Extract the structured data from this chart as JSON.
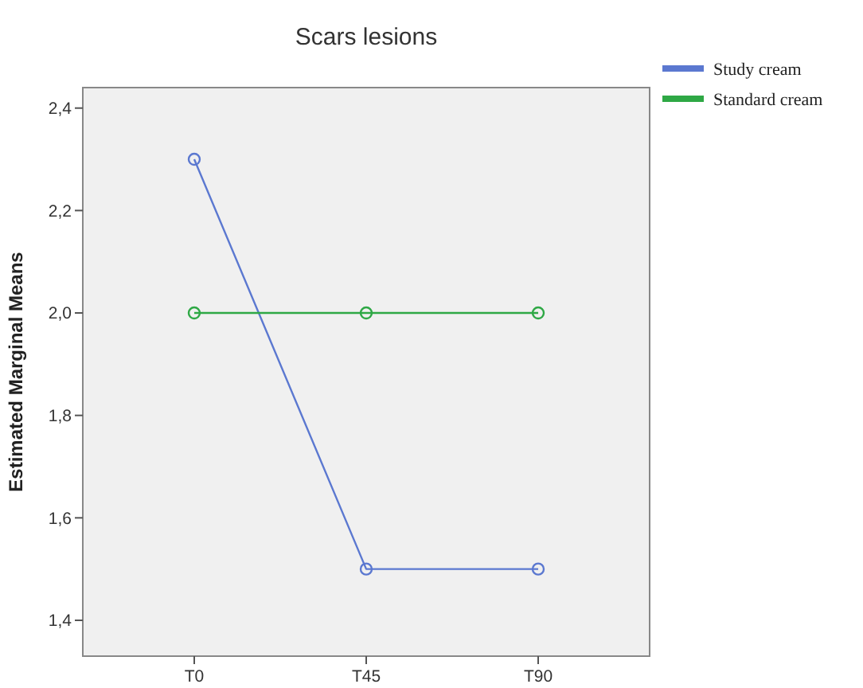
{
  "chart_data": {
    "type": "line",
    "title": "Scars lesions",
    "ylabel": "Estimated Marginal Means",
    "categories": [
      "T0",
      "T45",
      "T90"
    ],
    "series": [
      {
        "name": "Study cream",
        "color": "#5b78d0",
        "values": [
          2.3,
          1.5,
          1.5
        ]
      },
      {
        "name": "Standard cream",
        "color": "#2ea845",
        "values": [
          2.0,
          2.0,
          2.0
        ]
      }
    ],
    "ylim": [
      1.33,
      2.44
    ],
    "yticks": [
      {
        "value": 1.4,
        "label": "1,4"
      },
      {
        "value": 1.6,
        "label": "1,6"
      },
      {
        "value": 1.8,
        "label": "1,8"
      },
      {
        "value": 2.0,
        "label": "2,0"
      },
      {
        "value": 2.2,
        "label": "2,2"
      },
      {
        "value": 2.4,
        "label": "2,4"
      }
    ],
    "grid": false,
    "legend": "top right",
    "marker": "circle",
    "line_style": "solid"
  }
}
